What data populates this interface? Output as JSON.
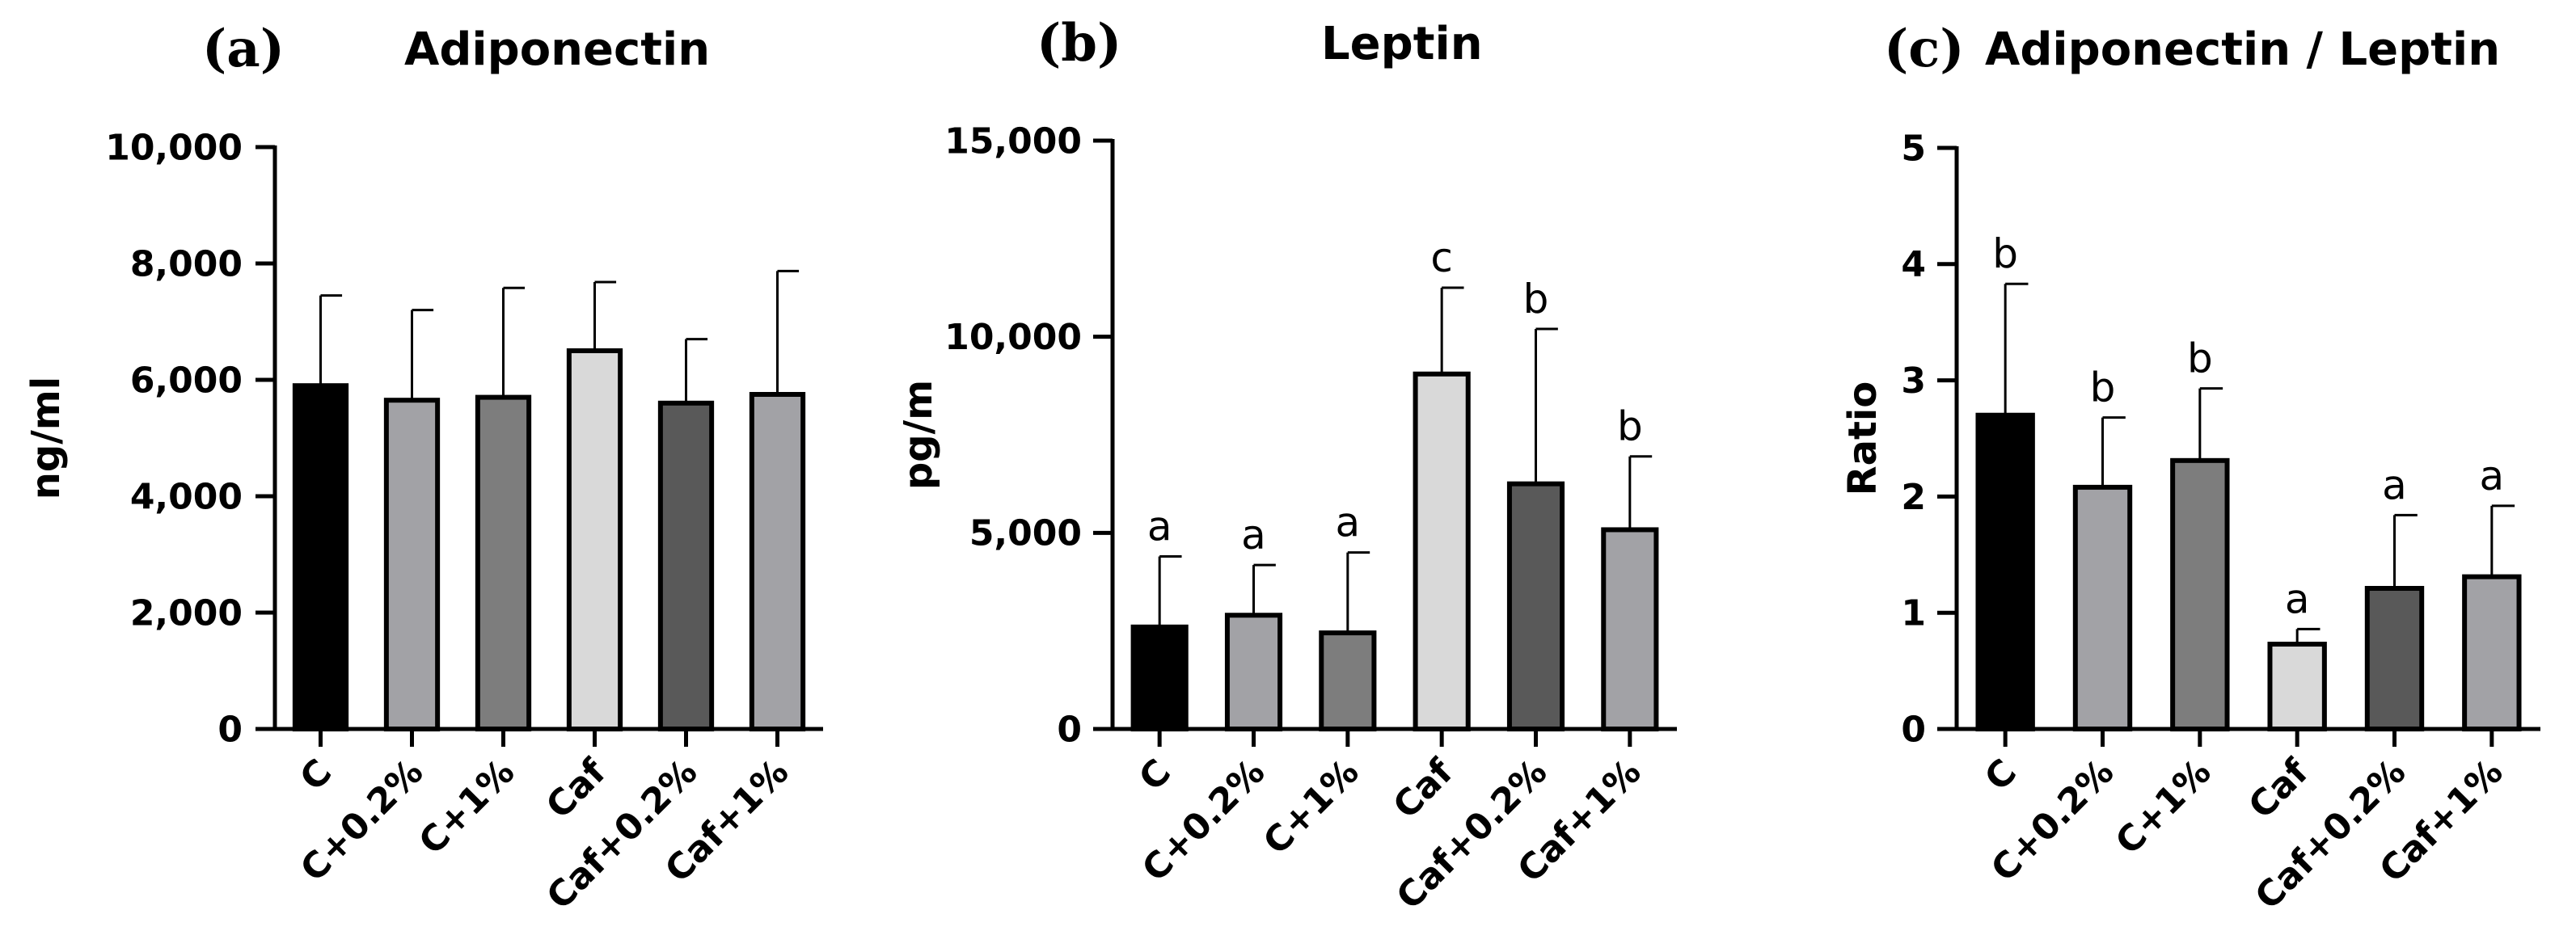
{
  "chart_data": [
    {
      "type": "bar",
      "panel_label": "(a)",
      "title": "Adiponectin",
      "ylabel": "ng/ml",
      "xlabel": "",
      "ylim": [
        0,
        10000
      ],
      "yticks": [
        0,
        2000,
        4000,
        6000,
        8000,
        10000
      ],
      "ytick_labels": [
        "0",
        "2,000",
        "4,000",
        "6,000",
        "8,000",
        "10,000"
      ],
      "categories": [
        "C",
        "C+0.2%",
        "C+1%",
        "Caf",
        "Caf+0.2%",
        "Caf+1%"
      ],
      "values": [
        5900,
        5650,
        5700,
        6500,
        5600,
        5750
      ],
      "error_upper": [
        7450,
        7200,
        7580,
        7680,
        6700,
        7870
      ],
      "significance_labels": [
        "",
        "",
        "",
        "",
        "",
        ""
      ]
    },
    {
      "type": "bar",
      "panel_label": "(b)",
      "title": "Leptin",
      "ylabel": "pg/m",
      "xlabel": "",
      "ylim": [
        0,
        15000
      ],
      "yticks": [
        0,
        5000,
        10000,
        15000
      ],
      "ytick_labels": [
        "0",
        "5,000",
        "10,000",
        "15,000"
      ],
      "categories": [
        "C",
        "C+0.2%",
        "C+1%",
        "Caf",
        "Caf+0.2%",
        "Caf+1%"
      ],
      "values": [
        2600,
        2900,
        2450,
        9050,
        6250,
        5080
      ],
      "error_upper": [
        4400,
        4180,
        4500,
        11250,
        10200,
        6950
      ],
      "significance_labels": [
        "a",
        "a",
        "a",
        "c",
        "b",
        "b"
      ]
    },
    {
      "type": "bar",
      "panel_label": "(c)",
      "title": "Adiponectin / Leptin",
      "ylabel": "Ratio",
      "xlabel": "",
      "ylim": [
        0,
        5
      ],
      "yticks": [
        0,
        1,
        2,
        3,
        4,
        5
      ],
      "ytick_labels": [
        "0",
        "1",
        "2",
        "3",
        "4",
        "5"
      ],
      "categories": [
        "C",
        "C+0.2%",
        "C+1%",
        "Caf",
        "Caf+0.2%",
        "Caf+1%"
      ],
      "values": [
        2.7,
        2.08,
        2.31,
        0.73,
        1.21,
        1.31
      ],
      "error_upper": [
        3.83,
        2.68,
        2.93,
        0.86,
        1.84,
        1.92
      ],
      "significance_labels": [
        "b",
        "b",
        "b",
        "a",
        "a",
        "a"
      ]
    }
  ],
  "colors": {
    "bar_fills": [
      "#000000",
      "#a2a2a6",
      "#7d7d7d",
      "#d9d9d9",
      "#595959",
      "#a2a2a6"
    ],
    "outline": "#000000"
  }
}
